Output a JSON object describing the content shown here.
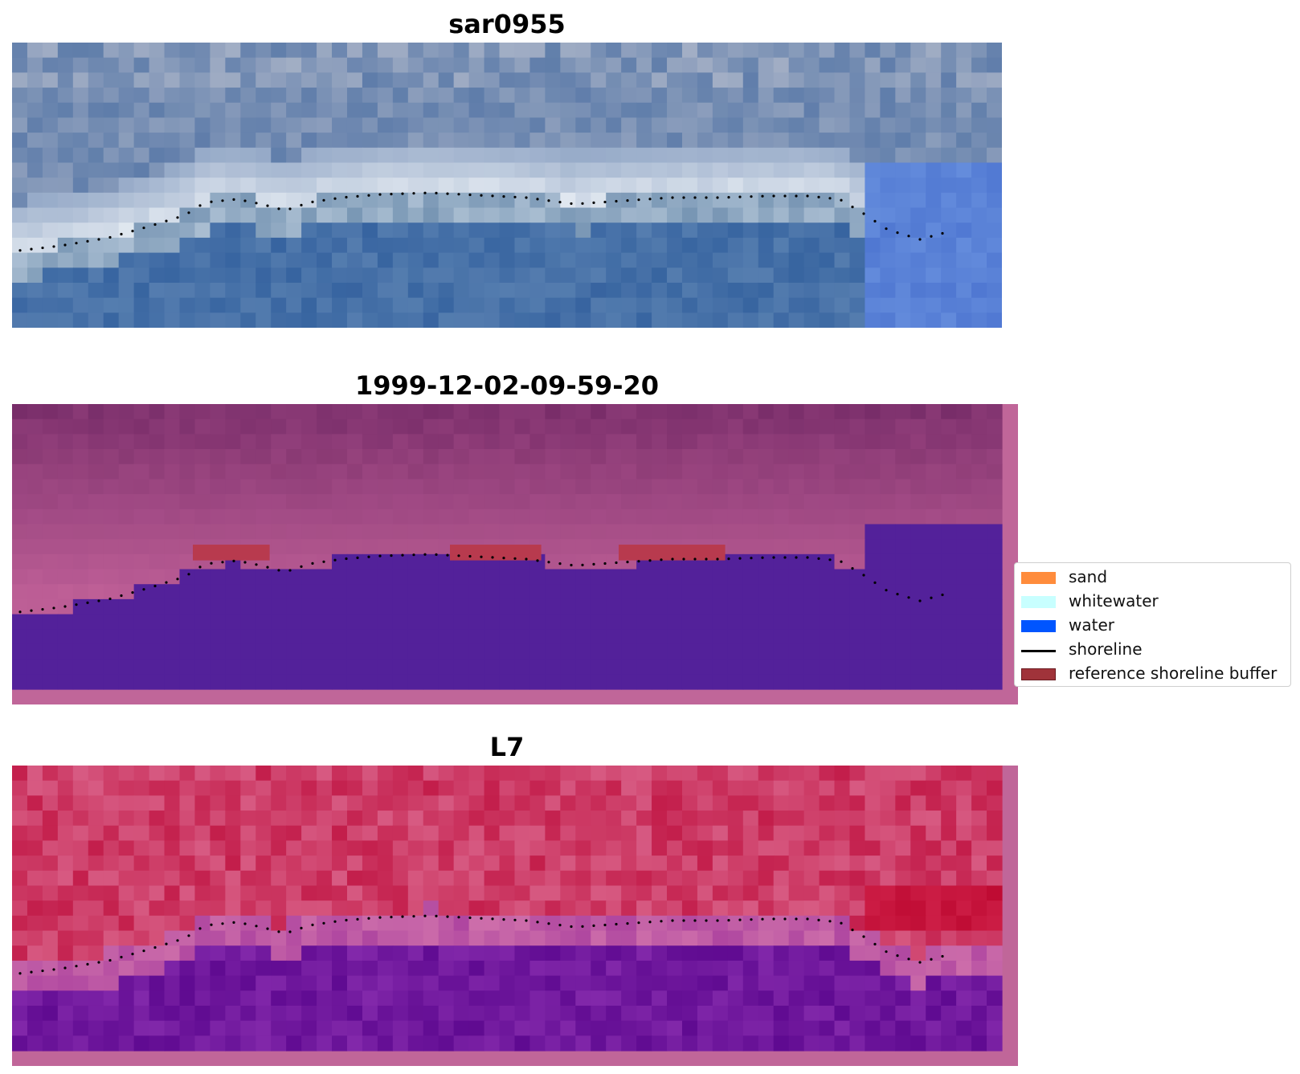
{
  "panels": [
    {
      "title": "sar0955",
      "style": "rgb"
    },
    {
      "title": "1999-12-02-09-59-20",
      "style": "class"
    },
    {
      "title": "L7",
      "style": "index"
    }
  ],
  "legend": [
    {
      "label": "sand",
      "kind": "patch",
      "color": "#ff8c3c"
    },
    {
      "label": "whitewater",
      "kind": "patch",
      "color": "#c8ffff"
    },
    {
      "label": "water",
      "kind": "patch",
      "color": "#0055ff"
    },
    {
      "label": "shoreline",
      "kind": "line",
      "color": "#000000"
    },
    {
      "label": "reference shoreline buffer",
      "kind": "patch",
      "color": "#a0333a"
    }
  ],
  "colors": {
    "frame": "#c06699",
    "water_class": "#53219a",
    "buffer": "#b83a4e",
    "shoreline": "#000000"
  }
}
